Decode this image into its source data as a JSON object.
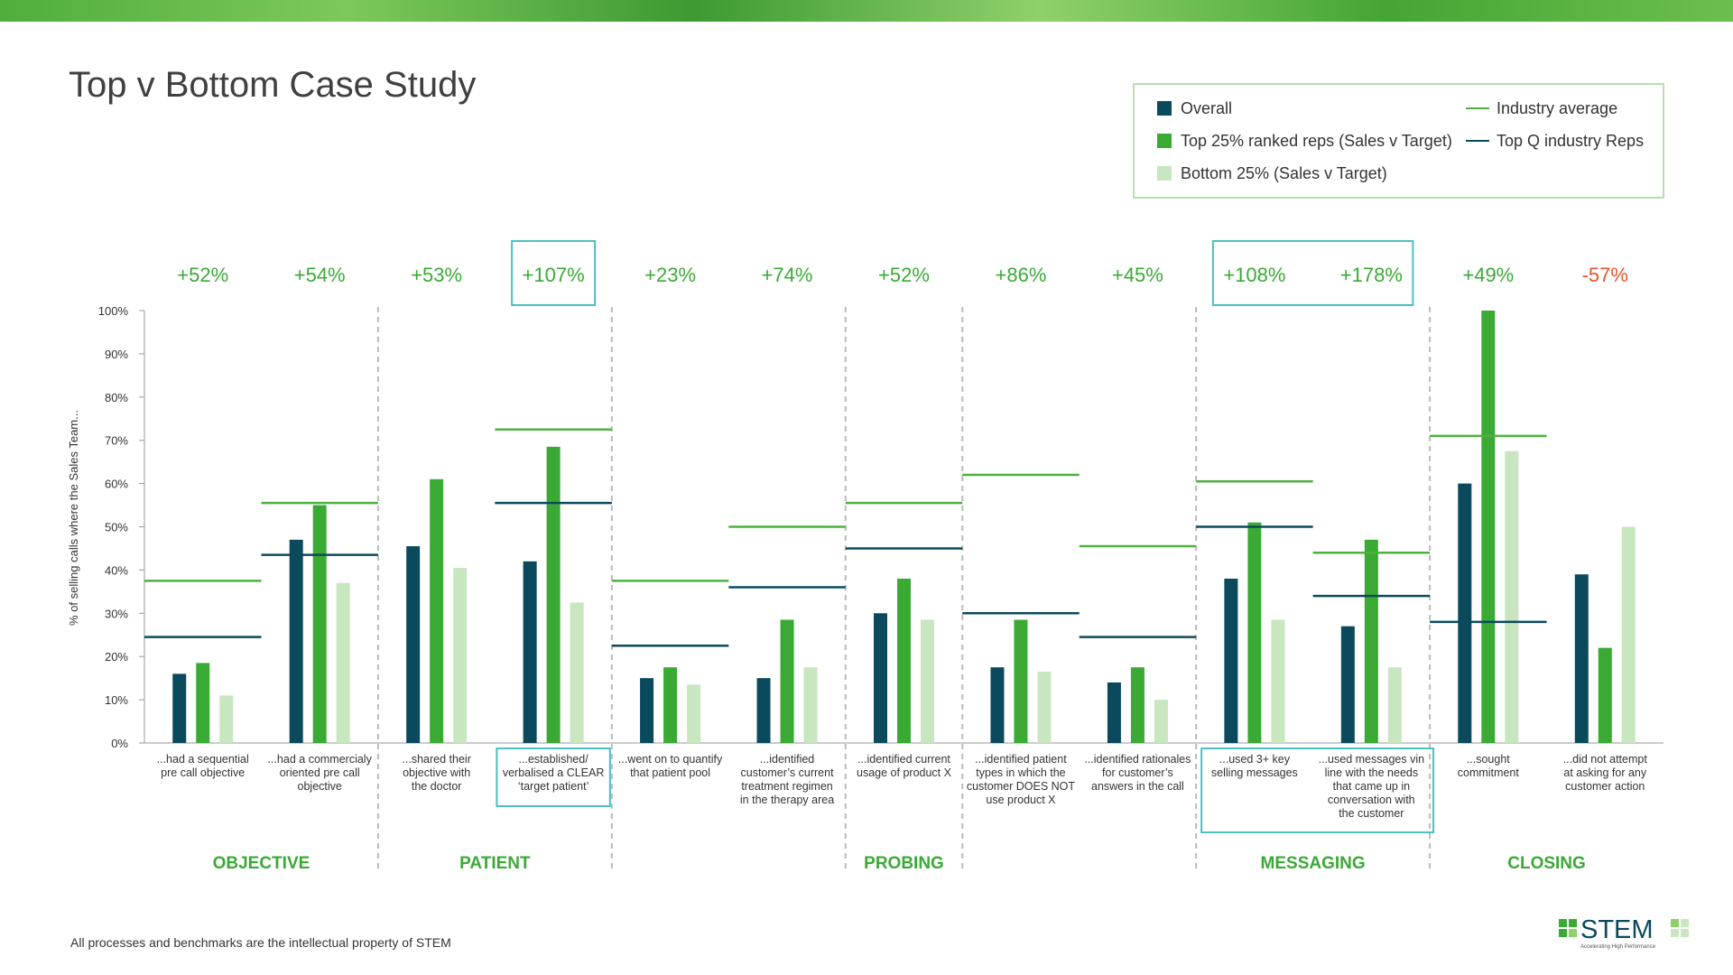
{
  "chart_data": {
    "type": "bar",
    "title": "Top v Bottom Case Study",
    "y_label": "% of selling calls where the Sales Team...",
    "categories": [
      "...had a sequential\npre call objective",
      "...had a commercialy\noriented pre call\nobjective",
      "...shared their\nobjective with\nthe doctor",
      "...established/\nverbalised a CLEAR\n‘target patient’",
      "...went on to quantify\nthat patient pool",
      "...identified\ncustomer’s current\ntreatment regimen\nin the therapy area",
      "...identified current\nusage of product X",
      "...identified patient\ntypes in which the\ncustomer DOES NOT\nuse product X",
      "...identified rationales\nfor customer’s\nanswers in the call",
      "...used 3+ key\nselling messages",
      "...used messages vin\nline with the needs\nthat came up in\nconversation with\nthe customer",
      "...sought\ncommitment",
      "...did not attempt\nat asking for any\ncustomer action"
    ],
    "series": [
      {
        "name": "Overall",
        "color": "#0b4a5c",
        "values": [
          16,
          47,
          45.5,
          42,
          15,
          15,
          30,
          17.5,
          14,
          38,
          27,
          60,
          39
        ]
      },
      {
        "name": "Top 25% ranked reps (Sales v Target)",
        "color": "#3aaa35",
        "values": [
          18.5,
          55,
          61,
          68.5,
          17.5,
          28.5,
          38,
          28.5,
          17.5,
          51,
          47,
          100,
          22
        ]
      },
      {
        "name": "Bottom 25% (Sales v Target)",
        "color": "#c8e6c0",
        "values": [
          11,
          37,
          40.5,
          32.5,
          13.5,
          17.5,
          28.5,
          16.5,
          10,
          28.5,
          17.5,
          67.5,
          50
        ]
      }
    ],
    "lines": [
      {
        "name": "Industry average",
        "color": "#4db03f",
        "values": [
          37.5,
          55.5,
          null,
          72.5,
          37.5,
          50,
          55.5,
          62,
          45.5,
          60.5,
          44,
          71,
          null
        ]
      },
      {
        "name": "Top Q industry Reps",
        "color": "#0b4a5c",
        "values": [
          24.5,
          43.5,
          null,
          55.5,
          22.5,
          36,
          45,
          30,
          24.5,
          50,
          34,
          28,
          null
        ]
      }
    ],
    "diff_labels": [
      "+52%",
      "+54%",
      "+53%",
      "+107%",
      "+23%",
      "+74%",
      "+52%",
      "+86%",
      "+45%",
      "+108%",
      "+178%",
      "+49%",
      "-57%"
    ],
    "diff_color": "#3aaa35",
    "diff_negative_color": "#e8552b",
    "groups": [
      "OBJECTIVE",
      "PATIENT",
      "PROBING",
      "MESSAGING",
      "CLOSING"
    ],
    "ylim": [
      0,
      100
    ],
    "yticks": [
      {
        "value": 0,
        "label": "0%"
      },
      {
        "value": 10,
        "label": "10%"
      },
      {
        "value": 20,
        "label": "20%"
      },
      {
        "value": 30,
        "label": "30%"
      },
      {
        "value": 40,
        "label": "40%"
      },
      {
        "value": 50,
        "label": "50%"
      },
      {
        "value": 60,
        "label": "60%"
      },
      {
        "value": 70,
        "label": "70%"
      },
      {
        "value": 80,
        "label": "80%"
      },
      {
        "value": 90,
        "label": "90%"
      },
      {
        "value": 100,
        "label": "100%"
      }
    ],
    "footer": "All processes and benchmarks are the intellectual property of STEM",
    "logo": "STEM",
    "logo_tagline": "Accelerating High Performance"
  }
}
